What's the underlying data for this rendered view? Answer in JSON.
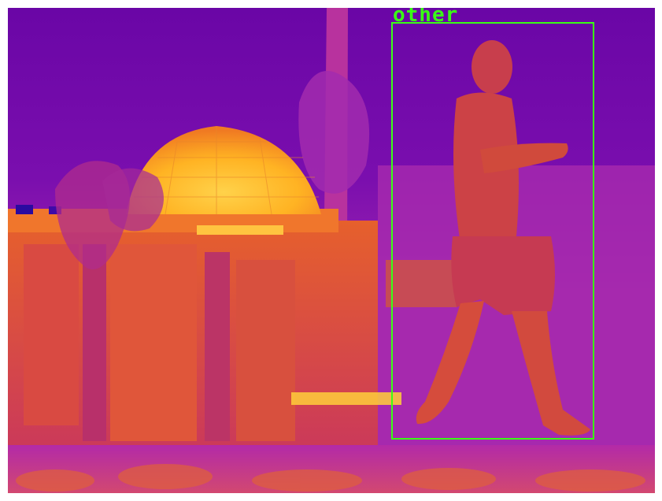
{
  "image": {
    "description_colormap": "thermal-plasma",
    "colors": {
      "cold": "#6e0aa8",
      "mid": "#b52bb0",
      "warm": "#e8553a",
      "hot": "#ffb020",
      "box": "#39ff14"
    }
  },
  "detections": [
    {
      "label": "other"
    }
  ]
}
